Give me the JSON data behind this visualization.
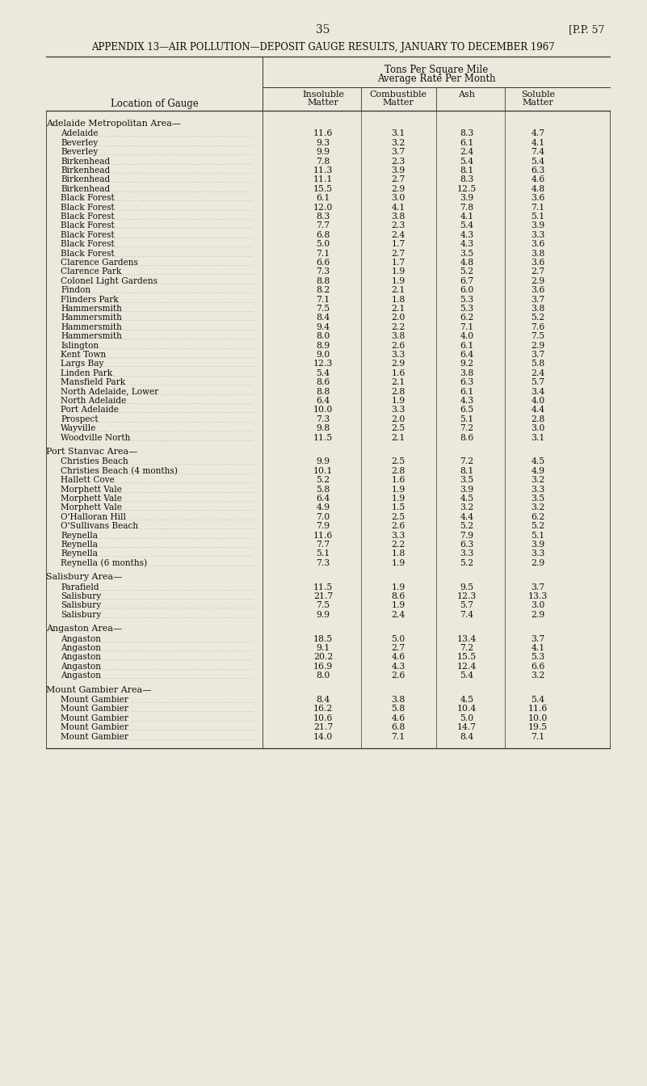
{
  "page_num": "35",
  "page_ref": "[P.P. 57",
  "title": "APPENDIX 13—AIR POLLUTION—DEPOSIT GAUGE RESULTS, JANUARY TO DECEMBER 1967",
  "header1": "Tons Per Square Mile",
  "header2": "Average Rate Per Month",
  "col_header_left": "Location of Gauge",
  "col_headers_line1": [
    "Insoluble",
    "Combustible",
    "Ash",
    "Soluble"
  ],
  "col_headers_line2": [
    "Matter",
    "Matter",
    "",
    "Matter"
  ],
  "bg_color": "#ede8dc",
  "sections": [
    {
      "section_title": "Adelaide Metropolitan Area—",
      "rows": [
        [
          "Adelaide",
          "11.6",
          "3.1",
          "8.3",
          "4.7"
        ],
        [
          "Beverley",
          "9.3",
          "3.2",
          "6.1",
          "4.1"
        ],
        [
          "Beverley",
          "9.9",
          "3.7",
          "2.4",
          "7.4"
        ],
        [
          "Birkenhead",
          "7.8",
          "2.3",
          "5.4",
          "5.4"
        ],
        [
          "Birkenhead",
          "11.3",
          "3.9",
          "8.1",
          "6.3"
        ],
        [
          "Birkenhead",
          "11.1",
          "2.7",
          "8.3",
          "4.6"
        ],
        [
          "Birkenhead",
          "15.5",
          "2.9",
          "12.5",
          "4.8"
        ],
        [
          "Black Forest",
          "6.1",
          "3.0",
          "3.9",
          "3.6"
        ],
        [
          "Black Forest",
          "12.0",
          "4.1",
          "7.8",
          "7.1"
        ],
        [
          "Black Forest",
          "8.3",
          "3.8",
          "4.1",
          "5.1"
        ],
        [
          "Black Forest",
          "7.7",
          "2.3",
          "5.4",
          "3.9"
        ],
        [
          "Black Forest",
          "6.8",
          "2.4",
          "4.3",
          "3.3"
        ],
        [
          "Black Forest",
          "5.0",
          "1.7",
          "4.3",
          "3.6"
        ],
        [
          "Black Forest",
          "7.1",
          "2.7",
          "3.5",
          "3.8"
        ],
        [
          "Clarence Gardens",
          "6.6",
          "1.7",
          "4.8",
          "3.6"
        ],
        [
          "Clarence Park",
          "7.3",
          "1.9",
          "5.2",
          "2.7"
        ],
        [
          "Colonel Light Gardens",
          "8.8",
          "1.9",
          "6.7",
          "2.9"
        ],
        [
          "Findon",
          "8.2",
          "2.1",
          "6.0",
          "3.6"
        ],
        [
          "Flinders Park",
          "7.1",
          "1.8",
          "5.3",
          "3.7"
        ],
        [
          "Hammersmith",
          "7.5",
          "2.1",
          "5.3",
          "3.8"
        ],
        [
          "Hammersmith",
          "8.4",
          "2.0",
          "6.2",
          "5.2"
        ],
        [
          "Hammersmith",
          "9.4",
          "2.2",
          "7.1",
          "7.6"
        ],
        [
          "Hammersmith",
          "8.0",
          "3.8",
          "4.0",
          "7.5"
        ],
        [
          "Islington",
          "8.9",
          "2.6",
          "6.1",
          "2.9"
        ],
        [
          "Kent Town",
          "9.0",
          "3.3",
          "6.4",
          "3.7"
        ],
        [
          "Largs Bay",
          "12.3",
          "2.9",
          "9.2",
          "5.8"
        ],
        [
          "Linden Park",
          "5.4",
          "1.6",
          "3.8",
          "2.4"
        ],
        [
          "Mansfield Park",
          "8.6",
          "2.1",
          "6.3",
          "5.7"
        ],
        [
          "North Adelaide, Lower",
          "8.8",
          "2.8",
          "6.1",
          "3.4"
        ],
        [
          "North Adelaide",
          "6.4",
          "1.9",
          "4.3",
          "4.0"
        ],
        [
          "Port Adelaide",
          "10.0",
          "3.3",
          "6.5",
          "4.4"
        ],
        [
          "Prospect",
          "7.3",
          "2.0",
          "5.1",
          "2.8"
        ],
        [
          "Wayville",
          "9.8",
          "2.5",
          "7.2",
          "3.0"
        ],
        [
          "Woodville North",
          "11.5",
          "2.1",
          "8.6",
          "3.1"
        ]
      ]
    },
    {
      "section_title": "Port Stanvac Area—",
      "rows": [
        [
          "Christies Beach",
          "9.9",
          "2.5",
          "7.2",
          "4.5"
        ],
        [
          "Christies Beach (4 months)",
          "10.1",
          "2.8",
          "8.1",
          "4.9"
        ],
        [
          "Hallett Cove",
          "5.2",
          "1.6",
          "3.5",
          "3.2"
        ],
        [
          "Morphett Vale",
          "5.8",
          "1.9",
          "3.9",
          "3.3"
        ],
        [
          "Morphett Vale",
          "6.4",
          "1.9",
          "4.5",
          "3.5"
        ],
        [
          "Morphett Vale",
          "4.9",
          "1.5",
          "3.2",
          "3.2"
        ],
        [
          "O'Halloran Hill",
          "7.0",
          "2.5",
          "4.4",
          "6.2"
        ],
        [
          "O'Sullivans Beach",
          "7.9",
          "2.6",
          "5.2",
          "5.2"
        ],
        [
          "Reynella",
          "11.6",
          "3.3",
          "7.9",
          "5.1"
        ],
        [
          "Reynella",
          "7.7",
          "2.2",
          "6.3",
          "3.9"
        ],
        [
          "Reynella",
          "5.1",
          "1.8",
          "3.3",
          "3.3"
        ],
        [
          "Reynella (6 months)",
          "7.3",
          "1.9",
          "5.2",
          "2.9"
        ]
      ]
    },
    {
      "section_title": "Salisbury Area—",
      "rows": [
        [
          "Parafield",
          "11.5",
          "1.9",
          "9.5",
          "3.7"
        ],
        [
          "Salisbury",
          "21.7",
          "8.6",
          "12.3",
          "13.3"
        ],
        [
          "Salisbury",
          "7.5",
          "1.9",
          "5.7",
          "3.0"
        ],
        [
          "Salisbury",
          "9.9",
          "2.4",
          "7.4",
          "2.9"
        ]
      ]
    },
    {
      "section_title": "Angaston Area—",
      "rows": [
        [
          "Angaston",
          "18.5",
          "5.0",
          "13.4",
          "3.7"
        ],
        [
          "Angaston",
          "9.1",
          "2.7",
          "7.2",
          "4.1"
        ],
        [
          "Angaston",
          "20.2",
          "4.6",
          "15.5",
          "5.3"
        ],
        [
          "Angaston",
          "16.9",
          "4.3",
          "12.4",
          "6.6"
        ],
        [
          "Angaston",
          "8.0",
          "2.6",
          "5.4",
          "3.2"
        ]
      ]
    },
    {
      "section_title": "Mount Gambier Area—",
      "rows": [
        [
          "Mount Gambier",
          "8.4",
          "3.8",
          "4.5",
          "5.4"
        ],
        [
          "Mount Gambier",
          "16.2",
          "5.8",
          "10.4",
          "11.6"
        ],
        [
          "Mount Gambier",
          "10.6",
          "4.6",
          "5.0",
          "10.0"
        ],
        [
          "Mount Gambier",
          "21.7",
          "6.8",
          "14.7",
          "19.5"
        ],
        [
          "Mount Gambier",
          "14.0",
          "7.1",
          "8.4",
          "7.1"
        ]
      ]
    }
  ]
}
